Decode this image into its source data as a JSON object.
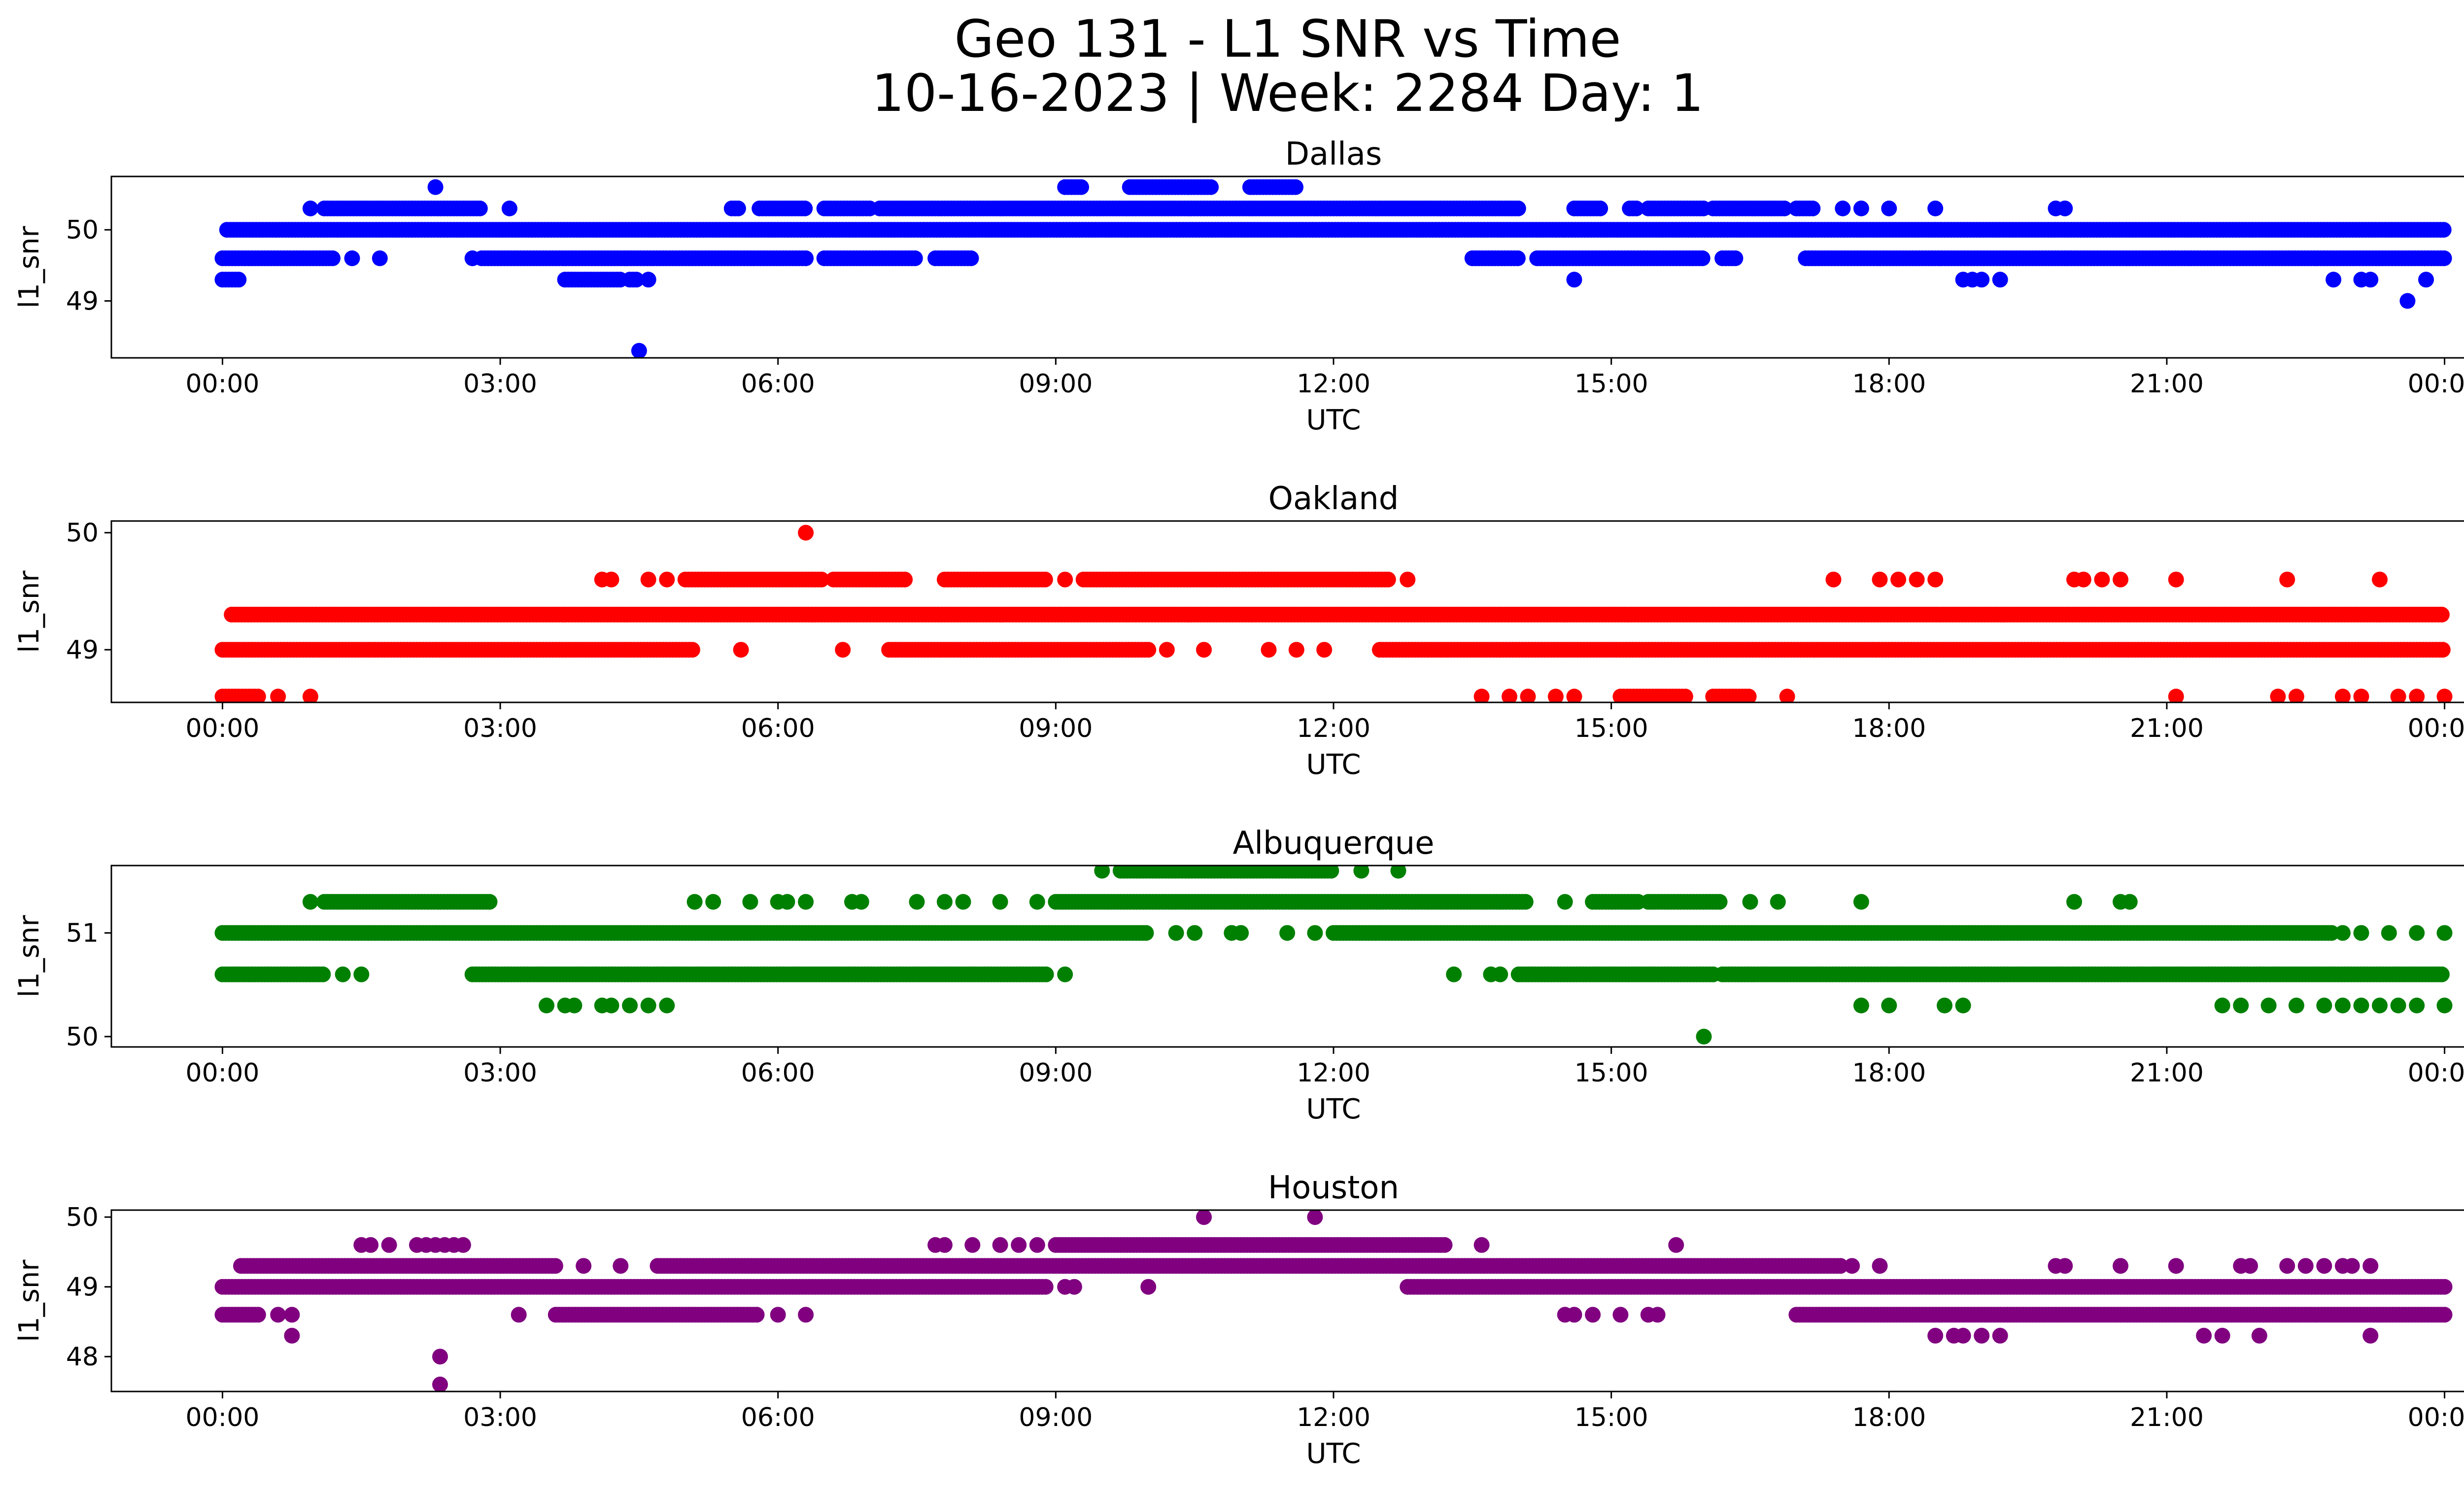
{
  "figure": {
    "title_line1": "Geo 131 - L1 SNR vs Time",
    "title_line2": "10-16-2023 | Week: 2284 Day: 1"
  },
  "chart_data": [
    {
      "type": "scatter",
      "title": "Dallas",
      "xlabel": "UTC",
      "ylabel": "l1_snr",
      "color": "#0000ff",
      "x_ticks": [
        "00:00",
        "03:00",
        "06:00",
        "09:00",
        "12:00",
        "15:00",
        "18:00",
        "21:00",
        "00:00"
      ],
      "y_ticks": [
        49,
        50
      ],
      "ylim": [
        48.2,
        50.75
      ],
      "xlim_hours": [
        -1.2,
        25.2
      ],
      "levels": [
        {
          "y": 50.0,
          "segments": [
            [
              0.05,
              24.0
            ]
          ]
        },
        {
          "y": 49.6,
          "segments": [
            [
              0.0,
              1.2
            ],
            [
              2.8,
              6.3
            ],
            [
              6.5,
              7.5
            ],
            [
              7.7,
              8.1
            ],
            [
              13.5,
              14.0
            ],
            [
              14.2,
              16.0
            ],
            [
              16.2,
              16.35
            ],
            [
              17.1,
              24.0
            ]
          ]
        },
        {
          "y": 50.3,
          "segments": [
            [
              1.1,
              2.8
            ],
            [
              5.5,
              5.6
            ],
            [
              5.8,
              6.3
            ],
            [
              6.5,
              7.0
            ],
            [
              7.1,
              14.0
            ],
            [
              14.6,
              14.9
            ],
            [
              15.2,
              15.3
            ],
            [
              15.4,
              16.0
            ],
            [
              16.1,
              16.9
            ],
            [
              17.0,
              17.2
            ]
          ]
        },
        {
          "y": 50.6,
          "segments": [
            [
              9.1,
              9.3
            ],
            [
              9.8,
              10.7
            ],
            [
              11.1,
              11.6
            ]
          ]
        },
        {
          "y": 49.3,
          "segments": [
            [
              0.0,
              0.2
            ],
            [
              3.7,
              4.3
            ],
            [
              4.4,
              4.5
            ]
          ]
        }
      ],
      "points": [
        {
          "x": 0.95,
          "y": 50.3
        },
        {
          "x": 2.3,
          "y": 50.6
        },
        {
          "x": 3.1,
          "y": 50.3
        },
        {
          "x": 17.5,
          "y": 50.3
        },
        {
          "x": 17.7,
          "y": 50.3
        },
        {
          "x": 18.0,
          "y": 50.3
        },
        {
          "x": 18.5,
          "y": 50.3
        },
        {
          "x": 19.8,
          "y": 50.3
        },
        {
          "x": 19.9,
          "y": 50.3
        },
        {
          "x": 1.4,
          "y": 49.6
        },
        {
          "x": 1.7,
          "y": 49.6
        },
        {
          "x": 2.7,
          "y": 49.6
        },
        {
          "x": 4.6,
          "y": 49.3
        },
        {
          "x": 14.6,
          "y": 49.3
        },
        {
          "x": 18.8,
          "y": 49.3
        },
        {
          "x": 18.9,
          "y": 49.3
        },
        {
          "x": 19.0,
          "y": 49.3
        },
        {
          "x": 19.2,
          "y": 49.3
        },
        {
          "x": 22.8,
          "y": 49.3
        },
        {
          "x": 23.1,
          "y": 49.3
        },
        {
          "x": 23.2,
          "y": 49.3
        },
        {
          "x": 23.6,
          "y": 49.0
        },
        {
          "x": 23.8,
          "y": 49.3
        },
        {
          "x": 4.5,
          "y": 48.3
        }
      ]
    },
    {
      "type": "scatter",
      "title": "Oakland",
      "xlabel": "UTC",
      "ylabel": "l1_snr",
      "color": "#ff0000",
      "x_ticks": [
        "00:00",
        "03:00",
        "06:00",
        "09:00",
        "12:00",
        "15:00",
        "18:00",
        "21:00",
        "00:00"
      ],
      "y_ticks": [
        49,
        50
      ],
      "ylim": [
        48.55,
        50.1
      ],
      "xlim_hours": [
        -1.2,
        25.2
      ],
      "levels": [
        {
          "y": 49.3,
          "segments": [
            [
              0.1,
              24.0
            ]
          ]
        },
        {
          "y": 49.0,
          "segments": [
            [
              0.0,
              5.1
            ],
            [
              7.2,
              10.0
            ],
            [
              12.5,
              24.0
            ]
          ]
        },
        {
          "y": 49.6,
          "segments": [
            [
              5.0,
              6.5
            ],
            [
              6.6,
              7.4
            ],
            [
              7.8,
              8.9
            ],
            [
              9.3,
              12.6
            ]
          ]
        },
        {
          "y": 48.6,
          "segments": [
            [
              0.0,
              0.4
            ],
            [
              15.1,
              15.8
            ],
            [
              16.1,
              16.5
            ]
          ]
        }
      ],
      "points": [
        {
          "x": 5.6,
          "y": 49.0
        },
        {
          "x": 6.7,
          "y": 49.0
        },
        {
          "x": 10.2,
          "y": 49.0
        },
        {
          "x": 10.6,
          "y": 49.0
        },
        {
          "x": 11.3,
          "y": 49.0
        },
        {
          "x": 11.6,
          "y": 49.0
        },
        {
          "x": 11.9,
          "y": 49.0
        },
        {
          "x": 4.1,
          "y": 49.6
        },
        {
          "x": 4.2,
          "y": 49.6
        },
        {
          "x": 4.6,
          "y": 49.6
        },
        {
          "x": 4.8,
          "y": 49.6
        },
        {
          "x": 9.1,
          "y": 49.6
        },
        {
          "x": 12.8,
          "y": 49.6
        },
        {
          "x": 17.4,
          "y": 49.6
        },
        {
          "x": 17.9,
          "y": 49.6
        },
        {
          "x": 18.1,
          "y": 49.6
        },
        {
          "x": 18.3,
          "y": 49.6
        },
        {
          "x": 18.5,
          "y": 49.6
        },
        {
          "x": 20.0,
          "y": 49.6
        },
        {
          "x": 20.1,
          "y": 49.6
        },
        {
          "x": 20.3,
          "y": 49.6
        },
        {
          "x": 20.5,
          "y": 49.6
        },
        {
          "x": 21.1,
          "y": 49.6
        },
        {
          "x": 22.3,
          "y": 49.6
        },
        {
          "x": 23.3,
          "y": 49.6
        },
        {
          "x": 6.3,
          "y": 50.0
        },
        {
          "x": 0.6,
          "y": 48.6
        },
        {
          "x": 0.95,
          "y": 48.6
        },
        {
          "x": 13.6,
          "y": 48.6
        },
        {
          "x": 13.9,
          "y": 48.6
        },
        {
          "x": 14.1,
          "y": 48.6
        },
        {
          "x": 14.4,
          "y": 48.6
        },
        {
          "x": 14.6,
          "y": 48.6
        },
        {
          "x": 16.9,
          "y": 48.6
        },
        {
          "x": 21.1,
          "y": 48.6
        },
        {
          "x": 22.2,
          "y": 48.6
        },
        {
          "x": 22.4,
          "y": 48.6
        },
        {
          "x": 22.9,
          "y": 48.6
        },
        {
          "x": 23.1,
          "y": 48.6
        },
        {
          "x": 23.5,
          "y": 48.6
        },
        {
          "x": 23.7,
          "y": 48.6
        },
        {
          "x": 24.0,
          "y": 48.6
        }
      ]
    },
    {
      "type": "scatter",
      "title": "Albuquerque",
      "xlabel": "UTC",
      "ylabel": "l1_snr",
      "color": "#008000",
      "x_ticks": [
        "00:00",
        "03:00",
        "06:00",
        "09:00",
        "12:00",
        "15:00",
        "18:00",
        "21:00",
        "00:00"
      ],
      "y_ticks": [
        50,
        51
      ],
      "ylim": [
        49.9,
        51.65
      ],
      "xlim_hours": [
        -1.2,
        25.2
      ],
      "levels": [
        {
          "y": 51.0,
          "segments": [
            [
              0.0,
              10.0
            ],
            [
              12.0,
              22.8
            ]
          ]
        },
        {
          "y": 50.6,
          "segments": [
            [
              0.0,
              1.1
            ],
            [
              2.7,
              8.9
            ],
            [
              14.0,
              16.1
            ],
            [
              16.2,
              24.0
            ]
          ]
        },
        {
          "y": 51.3,
          "segments": [
            [
              1.1,
              2.9
            ],
            [
              9.0,
              14.1
            ],
            [
              14.8,
              15.3
            ],
            [
              15.4,
              16.2
            ]
          ]
        },
        {
          "y": 51.6,
          "segments": [
            [
              9.7,
              12.0
            ]
          ]
        }
      ],
      "points": [
        {
          "x": 0.95,
          "y": 51.3
        },
        {
          "x": 5.1,
          "y": 51.3
        },
        {
          "x": 5.3,
          "y": 51.3
        },
        {
          "x": 5.7,
          "y": 51.3
        },
        {
          "x": 6.0,
          "y": 51.3
        },
        {
          "x": 6.1,
          "y": 51.3
        },
        {
          "x": 6.3,
          "y": 51.3
        },
        {
          "x": 6.8,
          "y": 51.3
        },
        {
          "x": 6.9,
          "y": 51.3
        },
        {
          "x": 7.5,
          "y": 51.3
        },
        {
          "x": 7.8,
          "y": 51.3
        },
        {
          "x": 8.0,
          "y": 51.3
        },
        {
          "x": 8.4,
          "y": 51.3
        },
        {
          "x": 8.8,
          "y": 51.3
        },
        {
          "x": 14.5,
          "y": 51.3
        },
        {
          "x": 16.5,
          "y": 51.3
        },
        {
          "x": 16.8,
          "y": 51.3
        },
        {
          "x": 17.7,
          "y": 51.3
        },
        {
          "x": 20.0,
          "y": 51.3
        },
        {
          "x": 20.5,
          "y": 51.3
        },
        {
          "x": 20.6,
          "y": 51.3
        },
        {
          "x": 9.5,
          "y": 51.6
        },
        {
          "x": 12.3,
          "y": 51.6
        },
        {
          "x": 12.7,
          "y": 51.6
        },
        {
          "x": 10.3,
          "y": 51.0
        },
        {
          "x": 10.5,
          "y": 51.0
        },
        {
          "x": 10.9,
          "y": 51.0
        },
        {
          "x": 11.0,
          "y": 51.0
        },
        {
          "x": 11.5,
          "y": 51.0
        },
        {
          "x": 11.8,
          "y": 51.0
        },
        {
          "x": 22.9,
          "y": 51.0
        },
        {
          "x": 23.1,
          "y": 51.0
        },
        {
          "x": 23.4,
          "y": 51.0
        },
        {
          "x": 23.7,
          "y": 51.0
        },
        {
          "x": 24.0,
          "y": 51.0
        },
        {
          "x": 1.3,
          "y": 50.6
        },
        {
          "x": 1.5,
          "y": 50.6
        },
        {
          "x": 9.1,
          "y": 50.6
        },
        {
          "x": 13.3,
          "y": 50.6
        },
        {
          "x": 13.7,
          "y": 50.6
        },
        {
          "x": 13.8,
          "y": 50.6
        },
        {
          "x": 3.5,
          "y": 50.3
        },
        {
          "x": 3.7,
          "y": 50.3
        },
        {
          "x": 3.8,
          "y": 50.3
        },
        {
          "x": 4.1,
          "y": 50.3
        },
        {
          "x": 4.2,
          "y": 50.3
        },
        {
          "x": 4.4,
          "y": 50.3
        },
        {
          "x": 4.6,
          "y": 50.3
        },
        {
          "x": 4.8,
          "y": 50.3
        },
        {
          "x": 17.7,
          "y": 50.3
        },
        {
          "x": 18.0,
          "y": 50.3
        },
        {
          "x": 18.6,
          "y": 50.3
        },
        {
          "x": 18.8,
          "y": 50.3
        },
        {
          "x": 21.6,
          "y": 50.3
        },
        {
          "x": 21.8,
          "y": 50.3
        },
        {
          "x": 22.1,
          "y": 50.3
        },
        {
          "x": 22.4,
          "y": 50.3
        },
        {
          "x": 22.7,
          "y": 50.3
        },
        {
          "x": 22.9,
          "y": 50.3
        },
        {
          "x": 23.1,
          "y": 50.3
        },
        {
          "x": 23.3,
          "y": 50.3
        },
        {
          "x": 23.5,
          "y": 50.3
        },
        {
          "x": 23.7,
          "y": 50.3
        },
        {
          "x": 24.0,
          "y": 50.3
        },
        {
          "x": 16.0,
          "y": 50.0
        }
      ]
    },
    {
      "type": "scatter",
      "title": "Houston",
      "xlabel": "UTC",
      "ylabel": "l1_snr",
      "color": "#800080",
      "x_ticks": [
        "00:00",
        "03:00",
        "06:00",
        "09:00",
        "12:00",
        "15:00",
        "18:00",
        "21:00",
        "00:00"
      ],
      "y_ticks": [
        48,
        49,
        50
      ],
      "ylim": [
        47.5,
        50.1
      ],
      "xlim_hours": [
        -1.2,
        25.2
      ],
      "levels": [
        {
          "y": 49.0,
          "segments": [
            [
              0.0,
              8.9
            ],
            [
              12.8,
              24.0
            ]
          ]
        },
        {
          "y": 49.3,
          "segments": [
            [
              0.2,
              3.6
            ],
            [
              4.7,
              17.5
            ]
          ]
        },
        {
          "y": 48.6,
          "segments": [
            [
              0.0,
              0.4
            ],
            [
              3.6,
              5.8
            ],
            [
              17.0,
              24.0
            ]
          ]
        },
        {
          "y": 49.6,
          "segments": [
            [
              9.0,
              13.2
            ]
          ]
        }
      ],
      "points": [
        {
          "x": 0.6,
          "y": 48.6
        },
        {
          "x": 0.75,
          "y": 48.6
        },
        {
          "x": 0.75,
          "y": 48.3
        },
        {
          "x": 3.2,
          "y": 48.6
        },
        {
          "x": 6.0,
          "y": 48.6
        },
        {
          "x": 6.3,
          "y": 48.6
        },
        {
          "x": 14.5,
          "y": 48.6
        },
        {
          "x": 14.6,
          "y": 48.6
        },
        {
          "x": 14.8,
          "y": 48.6
        },
        {
          "x": 15.1,
          "y": 48.6
        },
        {
          "x": 15.4,
          "y": 48.6
        },
        {
          "x": 15.5,
          "y": 48.6
        },
        {
          "x": 9.1,
          "y": 49.0
        },
        {
          "x": 9.2,
          "y": 49.0
        },
        {
          "x": 10.0,
          "y": 49.0
        },
        {
          "x": 3.9,
          "y": 49.3
        },
        {
          "x": 4.3,
          "y": 49.3
        },
        {
          "x": 17.6,
          "y": 49.3
        },
        {
          "x": 17.9,
          "y": 49.3
        },
        {
          "x": 19.8,
          "y": 49.3
        },
        {
          "x": 19.9,
          "y": 49.3
        },
        {
          "x": 20.5,
          "y": 49.3
        },
        {
          "x": 21.1,
          "y": 49.3
        },
        {
          "x": 21.8,
          "y": 49.3
        },
        {
          "x": 21.9,
          "y": 49.3
        },
        {
          "x": 22.3,
          "y": 49.3
        },
        {
          "x": 22.5,
          "y": 49.3
        },
        {
          "x": 22.7,
          "y": 49.3
        },
        {
          "x": 22.9,
          "y": 49.3
        },
        {
          "x": 23.0,
          "y": 49.3
        },
        {
          "x": 23.2,
          "y": 49.3
        },
        {
          "x": 1.5,
          "y": 49.6
        },
        {
          "x": 1.6,
          "y": 49.6
        },
        {
          "x": 1.8,
          "y": 49.6
        },
        {
          "x": 2.1,
          "y": 49.6
        },
        {
          "x": 2.2,
          "y": 49.6
        },
        {
          "x": 2.3,
          "y": 49.6
        },
        {
          "x": 2.4,
          "y": 49.6
        },
        {
          "x": 2.5,
          "y": 49.6
        },
        {
          "x": 2.6,
          "y": 49.6
        },
        {
          "x": 7.7,
          "y": 49.6
        },
        {
          "x": 7.8,
          "y": 49.6
        },
        {
          "x": 8.1,
          "y": 49.6
        },
        {
          "x": 8.4,
          "y": 49.6
        },
        {
          "x": 8.6,
          "y": 49.6
        },
        {
          "x": 8.8,
          "y": 49.6
        },
        {
          "x": 13.6,
          "y": 49.6
        },
        {
          "x": 15.7,
          "y": 49.6
        },
        {
          "x": 18.5,
          "y": 48.3
        },
        {
          "x": 18.7,
          "y": 48.3
        },
        {
          "x": 18.8,
          "y": 48.3
        },
        {
          "x": 19.0,
          "y": 48.3
        },
        {
          "x": 19.2,
          "y": 48.3
        },
        {
          "x": 21.4,
          "y": 48.3
        },
        {
          "x": 21.6,
          "y": 48.3
        },
        {
          "x": 22.0,
          "y": 48.3
        },
        {
          "x": 23.2,
          "y": 48.3
        },
        {
          "x": 10.6,
          "y": 50.0
        },
        {
          "x": 11.8,
          "y": 50.0
        },
        {
          "x": 2.35,
          "y": 48.0
        },
        {
          "x": 2.35,
          "y": 47.6
        }
      ]
    }
  ]
}
